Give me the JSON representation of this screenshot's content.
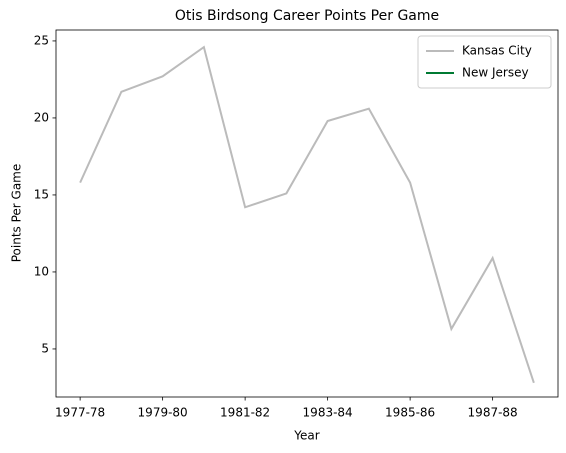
{
  "chart_data": {
    "type": "line",
    "title": "Otis Birdsong Career Points Per Game",
    "x_label": "Year",
    "y_label": "Points Per Game",
    "categories": [
      "1977-78",
      null,
      "1979-80",
      null,
      "1981-82",
      null,
      "1983-84",
      null,
      "1985-86",
      null,
      "1987-88",
      null
    ],
    "series": [
      {
        "name": "Kansas City",
        "color": "#bbbbbb",
        "values": [
          15.8,
          21.7,
          22.7,
          24.6,
          14.2,
          15.1,
          19.8,
          20.6,
          15.8,
          6.3,
          10.9,
          2.8
        ]
      },
      {
        "name": "New Jersey",
        "color": "#007a33",
        "values": [
          null,
          null,
          null,
          null,
          null,
          null,
          null,
          null,
          null,
          null,
          null,
          null
        ]
      }
    ],
    "ylim": [
      1.88,
      25.71
    ],
    "yticks": [
      5,
      10,
      15,
      20,
      25
    ],
    "legend": "upper right"
  }
}
